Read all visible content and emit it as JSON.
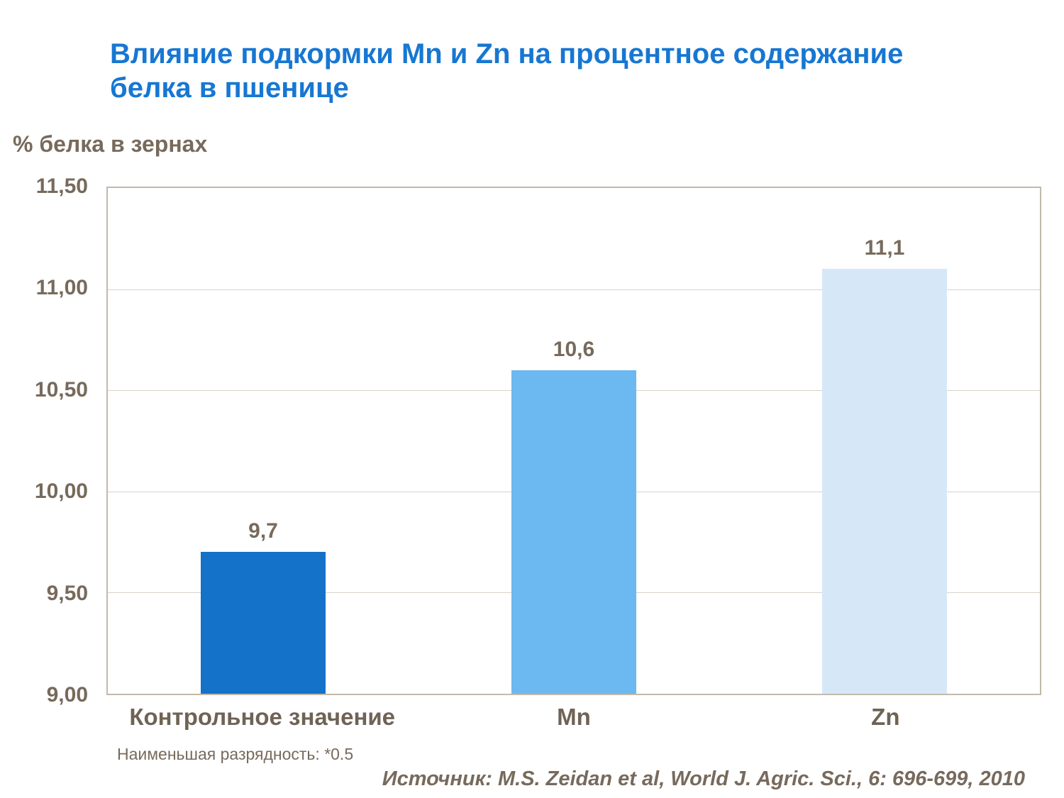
{
  "title": "Влияние подкормки Mn и Zn на процентное содержание белка в пшенице",
  "ylabel": "% белка в зернах",
  "footnote": "Наименьшая разрядность: *0.5",
  "source": "Источник: M.S. Zeidan et al, World J. Agric. Sci., 6: 696-699, 2010",
  "colors": {
    "title": "#1777d2",
    "text": "#776a5c",
    "plot_border": "#c3b9ab",
    "gridline": "#d9d3c8"
  },
  "chart_data": {
    "type": "bar",
    "title": "Влияние подкормки Mn и Zn на процентное содержание белка в пшенице",
    "xlabel": "",
    "ylabel": "% белка в зернах",
    "categories": [
      "Контрольное значение",
      "Mn",
      "Zn"
    ],
    "values": [
      9.7,
      10.6,
      11.1
    ],
    "value_labels": [
      "9,7",
      "10,6",
      "11,1"
    ],
    "bar_colors": [
      "#1472c8",
      "#6cb8f0",
      "#d6e8f8"
    ],
    "ylim": [
      9.0,
      11.5
    ],
    "ytick_values": [
      11.5,
      11.0,
      10.5,
      10.0,
      9.5,
      9.0
    ],
    "ytick_labels": [
      "11,50",
      "11,00",
      "10,50",
      "10,00",
      "9,50",
      "9,00"
    ],
    "grid": true,
    "legend_position": "none"
  }
}
